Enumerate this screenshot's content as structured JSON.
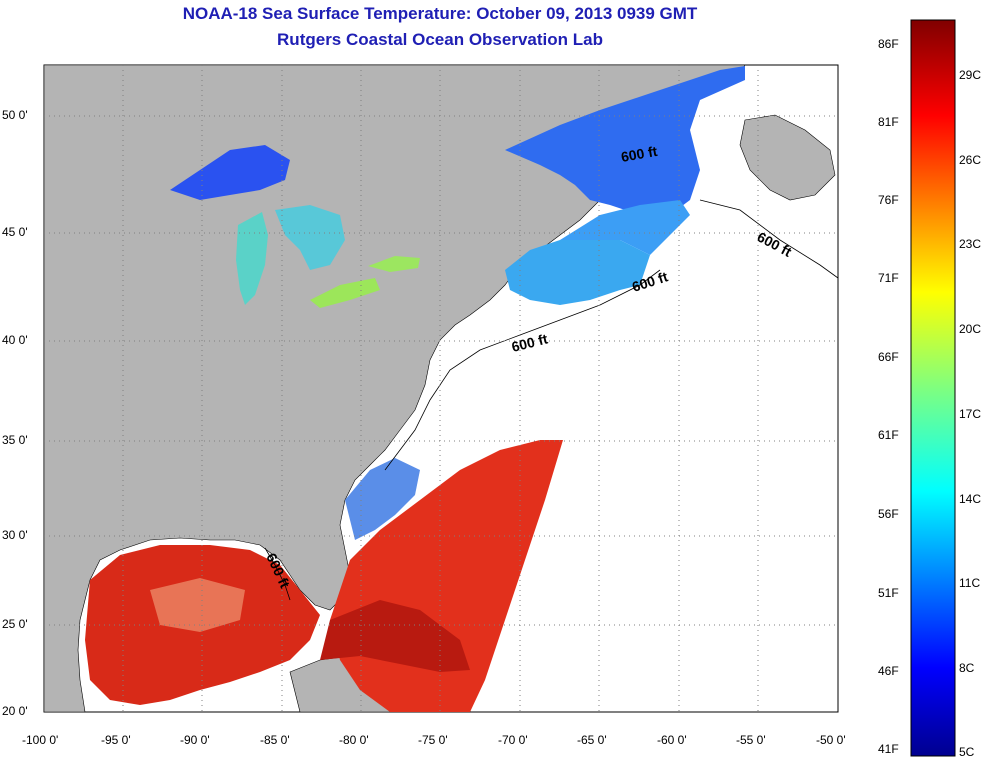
{
  "title": "NOAA-18 Sea Surface Temperature:  October 09, 2013 0939 GMT",
  "subtitle": "Rutgers Coastal Ocean Observation Lab",
  "x_ticks": [
    "-100 0'",
    "-95 0'",
    "-90 0'",
    "-85 0'",
    "-80 0'",
    "-75 0'",
    "-70 0'",
    "-65 0'",
    "-60 0'",
    "-55 0'",
    "-50 0'"
  ],
  "y_ticks": [
    "50 0'",
    "45 0'",
    "40 0'",
    "35 0'",
    "30 0'",
    "25 0'",
    "20 0'"
  ],
  "contour_label": "600 ft",
  "colorbar": {
    "fahrenheit": [
      "86F",
      "81F",
      "76F",
      "71F",
      "66F",
      "61F",
      "56F",
      "51F",
      "46F",
      "41F"
    ],
    "celsius": [
      "29C",
      "26C",
      "23C",
      "20C",
      "17C",
      "14C",
      "11C",
      "8C",
      "5C"
    ]
  },
  "colors": {
    "land": "#b4b4b4",
    "ocean_missing": "#ffffff",
    "title": "#1f1fb4",
    "grid": "#808080"
  }
}
